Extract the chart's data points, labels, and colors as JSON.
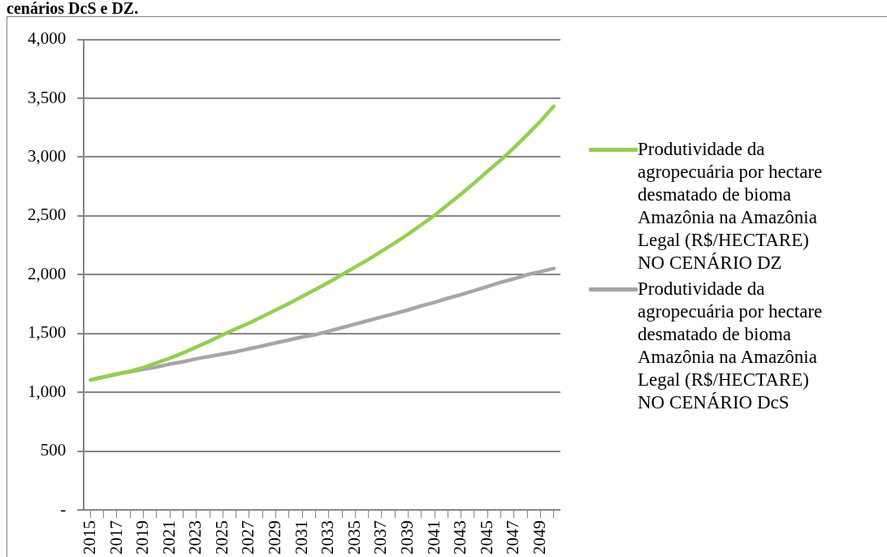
{
  "chart_data": {
    "type": "line",
    "title": "cenários DcS e DZ.",
    "categories": [
      "2015",
      null,
      "2017",
      null,
      "2019",
      null,
      "2021",
      null,
      "2023",
      null,
      "2025",
      null,
      "2027",
      null,
      "2029",
      null,
      "2031",
      null,
      "2033",
      null,
      "2035",
      null,
      "2037",
      null,
      "2039",
      null,
      "2041",
      null,
      "2043",
      null,
      "2045",
      null,
      "2047",
      null,
      "2049",
      null
    ],
    "series": [
      {
        "name": "Produtividade da agropecuária por hectare desmatado de bioma Amazônia na Amazônia Legal (R$/HECTARE) NO CENÁRIO DZ",
        "color": "#92d050",
        "values": [
          1105,
          1130,
          1155,
          1180,
          1210,
          1250,
          1290,
          1335,
          1385,
          1435,
          1490,
          1540,
          1590,
          1645,
          1700,
          1755,
          1815,
          1875,
          1935,
          2000,
          2065,
          2130,
          2200,
          2270,
          2345,
          2425,
          2505,
          2595,
          2685,
          2780,
          2880,
          2975,
          3080,
          3190,
          3305,
          3432
        ]
      },
      {
        "name": "Produtividade da agropecuária por hectare desmatado de bioma Amazônia na Amazônia Legal (R$/HECTARE) NO CENÁRIO DcS",
        "color": "#a6a6a6",
        "values": [
          1105,
          1130,
          1155,
          1175,
          1195,
          1215,
          1240,
          1260,
          1285,
          1305,
          1325,
          1345,
          1370,
          1395,
          1420,
          1445,
          1470,
          1490,
          1520,
          1550,
          1580,
          1610,
          1640,
          1670,
          1700,
          1735,
          1765,
          1800,
          1830,
          1865,
          1900,
          1935,
          1965,
          2000,
          2025,
          2053
        ]
      }
    ],
    "ylim": [
      0,
      4000
    ],
    "yticks": [
      {
        "value": 0,
        "label": "-"
      },
      {
        "value": 500,
        "label": "500"
      },
      {
        "value": 1000,
        "label": "1,000"
      },
      {
        "value": 1500,
        "label": "1,500"
      },
      {
        "value": 2000,
        "label": "2,000"
      },
      {
        "value": 2500,
        "label": "2,500"
      },
      {
        "value": 3000,
        "label": "3,000"
      },
      {
        "value": 3500,
        "label": "3,500"
      },
      {
        "value": 4000,
        "label": "4,000"
      }
    ],
    "grid": "y",
    "legend": "right",
    "marker": "none",
    "line_style": "solid"
  }
}
